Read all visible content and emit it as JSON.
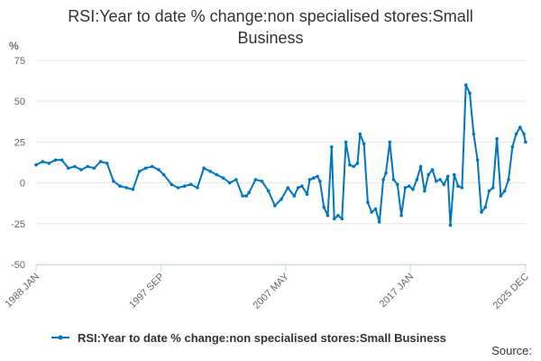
{
  "title": "RSI:Year to date % change:non specialised stores:Small Business",
  "unit_label": "%",
  "source_label": "Source:",
  "colors": {
    "series": "#0076be",
    "grid": "#e6e6e6",
    "axis": "#ccd6eb"
  },
  "chart_data": {
    "type": "line",
    "title": "RSI:Year to date % change:non specialised stores:Small Business",
    "ylabel": "%",
    "xlabel": "",
    "ylim": [
      -50,
      75
    ],
    "yticks": [
      -50,
      -25,
      0,
      25,
      50,
      75
    ],
    "xlim": [
      1988.0,
      2026.0
    ],
    "xticks": [
      {
        "value": 1988.0,
        "label": "1988 JAN"
      },
      {
        "value": 1997.67,
        "label": "1997 SEP"
      },
      {
        "value": 2007.33,
        "label": "2007 MAY"
      },
      {
        "value": 2017.0,
        "label": "2017 JAN"
      },
      {
        "value": 2025.92,
        "label": "2025 DEC"
      }
    ],
    "grid": true,
    "legend": "bottom",
    "series": [
      {
        "name": "RSI:Year to date % change:non specialised stores:Small Business",
        "x": [
          1988.0,
          1988.5,
          1989.0,
          1989.5,
          1990.0,
          1990.5,
          1991.0,
          1991.5,
          1992.0,
          1992.5,
          1993.0,
          1993.5,
          1994.0,
          1994.5,
          1995.0,
          1995.5,
          1996.0,
          1996.5,
          1997.0,
          1997.5,
          1997.9,
          1998.5,
          1999.0,
          1999.5,
          2000.0,
          2000.5,
          2001.0,
          2001.5,
          2002.0,
          2002.5,
          2003.0,
          2003.5,
          2004.0,
          2004.3,
          2004.5,
          2005.0,
          2005.5,
          2006.0,
          2006.5,
          2007.0,
          2007.5,
          2008.0,
          2008.3,
          2008.6,
          2009.0,
          2009.2,
          2009.5,
          2009.8,
          2010.0,
          2010.3,
          2010.6,
          2010.9,
          2011.1,
          2011.4,
          2011.7,
          2012.0,
          2012.3,
          2012.6,
          2012.9,
          2013.1,
          2013.4,
          2013.7,
          2014.0,
          2014.3,
          2014.6,
          2014.9,
          2015.1,
          2015.4,
          2015.7,
          2016.0,
          2016.3,
          2016.6,
          2016.9,
          2017.2,
          2017.5,
          2017.8,
          2018.1,
          2018.4,
          2018.7,
          2019.0,
          2019.3,
          2019.6,
          2019.9,
          2020.1,
          2020.4,
          2020.7,
          2021.0,
          2021.3,
          2021.6,
          2021.9,
          2022.2,
          2022.5,
          2022.8,
          2023.1,
          2023.4,
          2023.7,
          2024.0,
          2024.3,
          2024.6,
          2024.9,
          2025.2,
          2025.5,
          2025.8,
          2025.92
        ],
        "values": [
          11,
          13,
          12,
          14,
          14,
          9,
          10,
          8,
          10,
          9,
          13,
          12,
          1,
          -2,
          -3,
          -4,
          7,
          9,
          10,
          8,
          5,
          -1,
          -3,
          -2,
          -1,
          -3,
          9,
          7,
          5,
          3,
          0,
          2,
          -8,
          -8,
          -6,
          2,
          1,
          -5,
          -14,
          -10,
          -3,
          -8,
          -3,
          -2,
          -7,
          2,
          3,
          4,
          1,
          -15,
          -20,
          22,
          -22,
          -20,
          -22,
          25,
          11,
          10,
          12,
          30,
          24,
          -12,
          -18,
          -16,
          -24,
          2,
          6,
          25,
          2,
          -1,
          -20,
          -3,
          -2,
          -4,
          2,
          10,
          -5,
          5,
          8,
          1,
          2,
          -1,
          4,
          -26,
          5,
          -2,
          -3,
          60,
          55,
          30,
          14,
          -18,
          -15,
          -5,
          -3,
          27,
          -8,
          -5,
          2,
          22,
          30,
          34,
          30,
          25
        ]
      }
    ]
  }
}
